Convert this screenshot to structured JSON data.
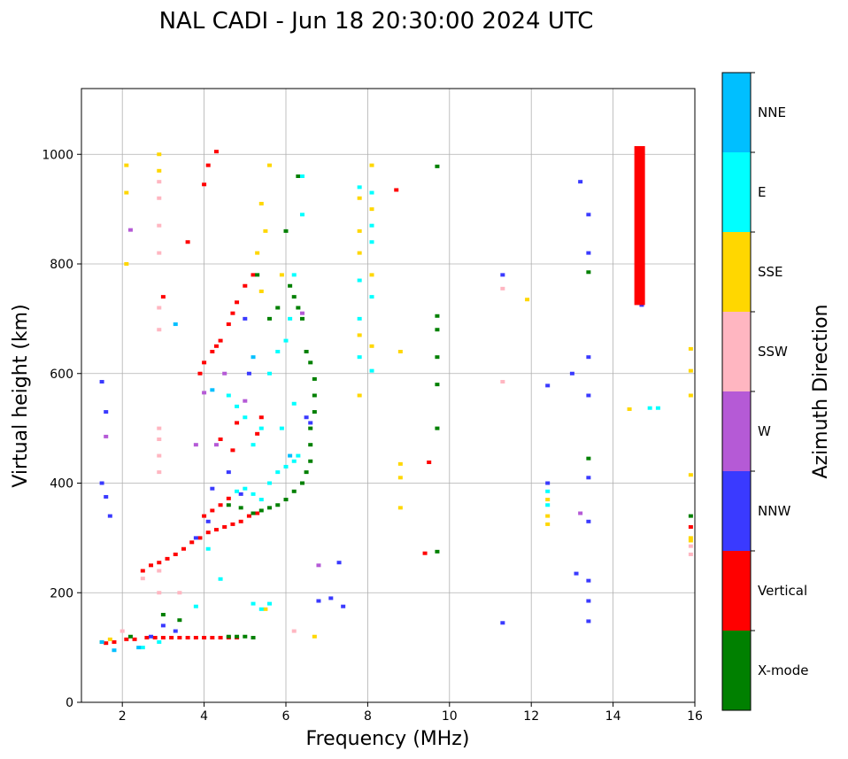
{
  "chart_data": {
    "type": "scatter",
    "title": "NAL CADI - Jun 18 20:30:00 2024 UTC",
    "xlabel": "Frequency (MHz)",
    "ylabel": "Virtual height (km)",
    "xlim": [
      1,
      16
    ],
    "ylim": [
      0,
      1120
    ],
    "xticks": [
      2,
      4,
      6,
      8,
      10,
      12,
      14,
      16
    ],
    "yticks": [
      0,
      200,
      400,
      600,
      800,
      1000
    ],
    "grid": true,
    "colorbar": {
      "label": "Azimuth Direction",
      "categories": [
        {
          "name": "X-mode",
          "color": "#008000"
        },
        {
          "name": "Vertical",
          "color": "#ff0000"
        },
        {
          "name": "NNW",
          "color": "#3a3aff"
        },
        {
          "name": "W",
          "color": "#b55ad6"
        },
        {
          "name": "SSW",
          "color": "#ffb6c1"
        },
        {
          "name": "SSE",
          "color": "#ffd700"
        },
        {
          "name": "E",
          "color": "#00ffff"
        },
        {
          "name": "NNE",
          "color": "#00bfff"
        }
      ]
    },
    "series": [
      {
        "name": "Vertical",
        "points": [
          [
            1.6,
            108
          ],
          [
            1.8,
            110
          ],
          [
            2.1,
            115
          ],
          [
            2.3,
            115
          ],
          [
            2.6,
            118
          ],
          [
            2.8,
            118
          ],
          [
            3.0,
            118
          ],
          [
            3.2,
            118
          ],
          [
            3.4,
            118
          ],
          [
            3.6,
            118
          ],
          [
            3.8,
            118
          ],
          [
            4.0,
            118
          ],
          [
            4.2,
            118
          ],
          [
            4.4,
            118
          ],
          [
            4.6,
            118
          ],
          [
            4.8,
            118
          ],
          [
            2.5,
            240
          ],
          [
            2.7,
            250
          ],
          [
            2.9,
            255
          ],
          [
            3.1,
            262
          ],
          [
            3.3,
            270
          ],
          [
            3.5,
            280
          ],
          [
            3.7,
            292
          ],
          [
            3.9,
            300
          ],
          [
            4.1,
            310
          ],
          [
            4.3,
            315
          ],
          [
            4.5,
            320
          ],
          [
            4.7,
            325
          ],
          [
            4.9,
            330
          ],
          [
            5.1,
            340
          ],
          [
            5.3,
            345
          ],
          [
            4.0,
            340
          ],
          [
            4.2,
            350
          ],
          [
            4.4,
            360
          ],
          [
            4.6,
            372
          ],
          [
            4.0,
            620
          ],
          [
            4.2,
            640
          ],
          [
            4.4,
            660
          ],
          [
            4.6,
            690
          ],
          [
            4.8,
            730
          ],
          [
            5.0,
            760
          ],
          [
            5.2,
            780
          ],
          [
            3.9,
            600
          ],
          [
            4.3,
            650
          ],
          [
            4.7,
            710
          ],
          [
            4.3,
            1005
          ],
          [
            4.1,
            980
          ],
          [
            4.0,
            945
          ],
          [
            4.4,
            480
          ],
          [
            4.7,
            460
          ],
          [
            5.3,
            490
          ],
          [
            5.4,
            520
          ],
          [
            4.8,
            510
          ],
          [
            3.6,
            840
          ],
          [
            3.0,
            740
          ],
          [
            9.4,
            272
          ],
          [
            9.5,
            438
          ],
          [
            8.7,
            935
          ],
          [
            15.9,
            320
          ]
        ]
      },
      {
        "name": "X-mode",
        "points": [
          [
            5.2,
            345
          ],
          [
            5.4,
            350
          ],
          [
            5.6,
            355
          ],
          [
            5.8,
            360
          ],
          [
            6.0,
            370
          ],
          [
            6.2,
            385
          ],
          [
            6.4,
            400
          ],
          [
            6.5,
            420
          ],
          [
            6.6,
            440
          ],
          [
            6.6,
            470
          ],
          [
            6.6,
            500
          ],
          [
            6.7,
            530
          ],
          [
            6.7,
            560
          ],
          [
            6.7,
            590
          ],
          [
            6.6,
            620
          ],
          [
            6.5,
            640
          ],
          [
            4.6,
            360
          ],
          [
            4.9,
            355
          ],
          [
            6.1,
            760
          ],
          [
            6.2,
            740
          ],
          [
            6.4,
            700
          ],
          [
            6.3,
            720
          ],
          [
            5.8,
            720
          ],
          [
            5.6,
            700
          ],
          [
            5.3,
            780
          ],
          [
            6.0,
            860
          ],
          [
            6.3,
            960
          ],
          [
            4.6,
            120
          ],
          [
            4.8,
            120
          ],
          [
            5.0,
            120
          ],
          [
            5.2,
            118
          ],
          [
            3.0,
            160
          ],
          [
            3.4,
            150
          ],
          [
            2.2,
            120
          ],
          [
            9.7,
            500
          ],
          [
            9.7,
            580
          ],
          [
            9.7,
            630
          ],
          [
            9.7,
            680
          ],
          [
            9.7,
            705
          ],
          [
            9.7,
            978
          ],
          [
            9.7,
            275
          ],
          [
            13.4,
            445
          ],
          [
            13.4,
            785
          ],
          [
            15.9,
            340
          ]
        ]
      },
      {
        "name": "NNW",
        "points": [
          [
            1.5,
            585
          ],
          [
            1.6,
            530
          ],
          [
            1.6,
            375
          ],
          [
            1.5,
            400
          ],
          [
            1.7,
            340
          ],
          [
            2.7,
            120
          ],
          [
            3.0,
            140
          ],
          [
            3.3,
            130
          ],
          [
            3.8,
            300
          ],
          [
            4.1,
            330
          ],
          [
            4.2,
            390
          ],
          [
            4.6,
            420
          ],
          [
            4.9,
            380
          ],
          [
            5.1,
            600
          ],
          [
            5.0,
            700
          ],
          [
            6.5,
            520
          ],
          [
            6.6,
            510
          ],
          [
            6.8,
            185
          ],
          [
            7.1,
            190
          ],
          [
            7.4,
            175
          ],
          [
            7.3,
            255
          ],
          [
            12.4,
            400
          ],
          [
            13.1,
            235
          ],
          [
            13.2,
            950
          ],
          [
            13.4,
            890
          ],
          [
            13.4,
            820
          ],
          [
            13.4,
            630
          ],
          [
            13.4,
            560
          ],
          [
            13.4,
            410
          ],
          [
            13.4,
            330
          ],
          [
            13.4,
            222
          ],
          [
            13.4,
            185
          ],
          [
            13.4,
            148
          ],
          [
            13.0,
            600
          ],
          [
            12.4,
            578
          ],
          [
            11.3,
            145
          ],
          [
            11.3,
            780
          ],
          [
            14.7,
            725
          ]
        ]
      },
      {
        "name": "W",
        "points": [
          [
            1.6,
            485
          ],
          [
            2.2,
            862
          ],
          [
            3.8,
            470
          ],
          [
            4.0,
            565
          ],
          [
            4.5,
            600
          ],
          [
            6.4,
            710
          ],
          [
            6.8,
            250
          ],
          [
            13.2,
            345
          ],
          [
            5.0,
            550
          ],
          [
            4.3,
            470
          ]
        ]
      },
      {
        "name": "SSW",
        "points": [
          [
            2.9,
            480
          ],
          [
            2.9,
            500
          ],
          [
            2.9,
            450
          ],
          [
            2.9,
            420
          ],
          [
            2.9,
            820
          ],
          [
            2.9,
            870
          ],
          [
            2.9,
            920
          ],
          [
            2.9,
            950
          ],
          [
            2.9,
            680
          ],
          [
            2.9,
            720
          ],
          [
            2.9,
            240
          ],
          [
            2.9,
            200
          ],
          [
            3.4,
            200
          ],
          [
            2.5,
            226
          ],
          [
            2.0,
            130
          ],
          [
            11.3,
            755
          ],
          [
            11.3,
            585
          ],
          [
            15.9,
            270
          ],
          [
            15.9,
            285
          ],
          [
            6.2,
            130
          ]
        ]
      },
      {
        "name": "SSE",
        "points": [
          [
            1.5,
            110
          ],
          [
            1.7,
            115
          ],
          [
            2.1,
            930
          ],
          [
            2.1,
            980
          ],
          [
            2.1,
            800
          ],
          [
            2.9,
            1000
          ],
          [
            2.9,
            970
          ],
          [
            5.4,
            750
          ],
          [
            5.6,
            980
          ],
          [
            5.4,
            910
          ],
          [
            5.5,
            860
          ],
          [
            5.3,
            820
          ],
          [
            5.9,
            780
          ],
          [
            7.8,
            860
          ],
          [
            7.8,
            820
          ],
          [
            7.8,
            920
          ],
          [
            7.8,
            670
          ],
          [
            7.8,
            560
          ],
          [
            8.1,
            980
          ],
          [
            8.1,
            780
          ],
          [
            8.1,
            650
          ],
          [
            8.1,
            900
          ],
          [
            8.8,
            435
          ],
          [
            8.8,
            410
          ],
          [
            8.8,
            355
          ],
          [
            8.8,
            640
          ],
          [
            11.9,
            735
          ],
          [
            12.4,
            340
          ],
          [
            12.4,
            325
          ],
          [
            12.4,
            370
          ],
          [
            14.4,
            535
          ],
          [
            15.9,
            645
          ],
          [
            15.9,
            605
          ],
          [
            15.9,
            560
          ],
          [
            15.9,
            415
          ],
          [
            15.9,
            300
          ],
          [
            15.9,
            295
          ],
          [
            6.7,
            120
          ],
          [
            5.5,
            170
          ]
        ]
      },
      {
        "name": "E",
        "points": [
          [
            4.8,
            385
          ],
          [
            5.0,
            390
          ],
          [
            5.2,
            380
          ],
          [
            5.4,
            370
          ],
          [
            5.6,
            400
          ],
          [
            5.8,
            420
          ],
          [
            6.0,
            430
          ],
          [
            6.2,
            440
          ],
          [
            6.3,
            450
          ],
          [
            4.6,
            560
          ],
          [
            4.8,
            540
          ],
          [
            5.0,
            520
          ],
          [
            5.2,
            470
          ],
          [
            5.4,
            500
          ],
          [
            5.6,
            600
          ],
          [
            5.8,
            640
          ],
          [
            6.0,
            660
          ],
          [
            6.2,
            545
          ],
          [
            6.1,
            700
          ],
          [
            6.2,
            780
          ],
          [
            6.4,
            890
          ],
          [
            6.4,
            960
          ],
          [
            5.2,
            180
          ],
          [
            5.4,
            170
          ],
          [
            5.6,
            180
          ],
          [
            4.4,
            225
          ],
          [
            3.8,
            175
          ],
          [
            2.5,
            100
          ],
          [
            2.9,
            110
          ],
          [
            4.1,
            280
          ],
          [
            7.8,
            940
          ],
          [
            7.8,
            770
          ],
          [
            7.8,
            700
          ],
          [
            7.8,
            630
          ],
          [
            8.1,
            870
          ],
          [
            8.1,
            840
          ],
          [
            8.1,
            605
          ],
          [
            8.1,
            740
          ],
          [
            8.1,
            930
          ],
          [
            12.4,
            360
          ],
          [
            12.4,
            385
          ],
          [
            14.9,
            537
          ],
          [
            15.1,
            537
          ],
          [
            5.9,
            500
          ]
        ]
      },
      {
        "name": "NNE",
        "points": [
          [
            1.5,
            110
          ],
          [
            1.8,
            95
          ],
          [
            2.4,
            100
          ],
          [
            3.3,
            690
          ],
          [
            4.2,
            570
          ],
          [
            5.2,
            630
          ],
          [
            6.1,
            450
          ]
        ]
      }
    ],
    "columns": [
      {
        "name": "Vertical",
        "x": 14.65,
        "ymin": 725,
        "ymax": 1015
      }
    ]
  }
}
